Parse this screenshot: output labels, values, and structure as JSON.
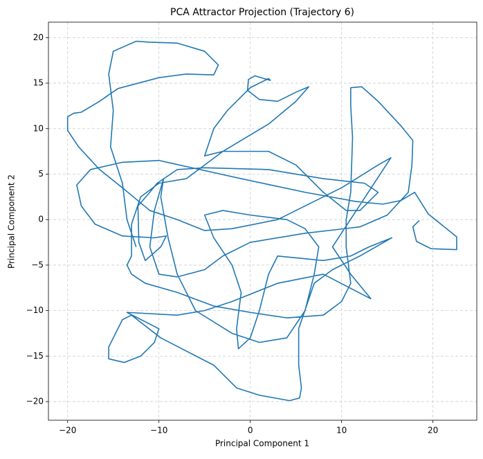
{
  "chart_data": {
    "type": "line",
    "title": "PCA Attractor Projection (Trajectory 6)",
    "x_label": "Principal Component 1",
    "y_label": "Principal Component 2",
    "grid": true,
    "xlim": [
      -22.1,
      24.8
    ],
    "ylim": [
      -22.05,
      21.7
    ],
    "xticks": [
      {
        "value": -20,
        "label": "−20"
      },
      {
        "value": -10,
        "label": "−10"
      },
      0,
      10,
      20
    ],
    "yticks": [
      {
        "value": -20,
        "label": "−20"
      },
      {
        "value": -15,
        "label": "−15"
      },
      {
        "value": -10,
        "label": "−10"
      },
      {
        "value": -5,
        "label": "−5"
      },
      0,
      5,
      10,
      15,
      20
    ],
    "series": [
      {
        "color": "#1f77b4",
        "x": [
          18.5,
          17.8,
          18.2,
          19.8,
          22.6,
          22.6,
          21,
          19.5,
          18,
          16.5,
          14.5,
          11.5,
          6,
          -1,
          -10,
          -14,
          -17.5,
          -19,
          -18.5,
          -17,
          -14,
          -10.5,
          -9.2,
          -9.8,
          -11.5,
          -12.2,
          -12.3,
          -11,
          -10.2,
          -8,
          -5,
          2,
          8,
          12.5,
          14,
          12,
          10.5,
          8,
          5,
          2,
          -3,
          -5,
          -4,
          -2.5,
          0,
          2,
          2.2,
          0.5,
          -0.2,
          -0.3,
          1,
          3,
          5,
          6.4,
          5,
          2,
          -3,
          -5,
          -7,
          -10,
          -12,
          -13,
          -13,
          -13.5,
          -13,
          -11.5,
          -8,
          -4,
          0,
          4,
          8,
          10,
          11,
          10.5,
          10.5,
          11,
          11.2,
          11,
          11,
          12.2,
          14,
          16.5,
          17.8,
          17.7,
          17.3,
          15,
          12,
          6,
          0,
          -3,
          -5,
          -8,
          -10,
          -11,
          -10.5,
          -9.5,
          -9.8,
          -9,
          -8,
          -6,
          -2,
          1,
          4,
          6,
          7,
          7.5,
          6,
          4,
          0,
          -3,
          -5,
          -4,
          -2,
          -1,
          -1.5,
          -1.3,
          0,
          1,
          2,
          3,
          5,
          8,
          11,
          13,
          15.5,
          12,
          9,
          7,
          5.3,
          5.3,
          5.6,
          5.4,
          4.3,
          1,
          -1.5,
          -4,
          -9.8,
          -13,
          -14,
          -15.5,
          -15.5,
          -13.8,
          -12,
          -10.5,
          -10,
          -13.5,
          -8,
          -5,
          -2,
          3,
          8,
          13.2,
          11,
          9,
          15.4,
          14,
          10,
          3,
          -2,
          -5,
          -8,
          -11,
          -14,
          -16.5,
          -18.8,
          -20,
          -20,
          -19.3,
          -18.5,
          -16.5,
          -14.5,
          -10,
          -7,
          -4,
          -3.5,
          -5,
          -8,
          -11,
          -12.5,
          -15,
          -15.5,
          -15,
          -15.3,
          -14,
          -13.5,
          -12.5
        ],
        "values": [
          -0.1,
          -0.8,
          -2.4,
          -3.2,
          -3.3,
          -1.9,
          -0.6,
          0.6,
          3,
          2.1,
          1.7,
          2,
          3,
          4.5,
          6.5,
          6.3,
          5.5,
          3.8,
          1.5,
          -0.5,
          -1.8,
          -2,
          -1.8,
          -3,
          -4.5,
          -2.5,
          1.5,
          3,
          4,
          5.5,
          5.7,
          5.5,
          4.5,
          4,
          3,
          1,
          1,
          3,
          6,
          7.5,
          7.5,
          7,
          10,
          12,
          14.5,
          15.5,
          15.3,
          15.8,
          15.4,
          14.2,
          13.2,
          13,
          14,
          14.6,
          13,
          10.5,
          7.5,
          6,
          4.5,
          4,
          2.5,
          -0.5,
          -4,
          -5,
          -6,
          -7,
          -8,
          -9.5,
          -10.2,
          -10.8,
          -10.5,
          -9,
          -7,
          -3,
          0,
          3,
          9,
          12.5,
          14.5,
          14.6,
          13,
          10.3,
          8.7,
          6,
          3,
          0.5,
          -0.8,
          -1.5,
          -2.5,
          -4,
          -5.5,
          -6.3,
          -6,
          -3,
          1,
          4.5,
          2.5,
          -2,
          -6,
          -10,
          -12.5,
          -13.5,
          -13,
          -10,
          -6,
          -3,
          -1,
          0,
          0.5,
          1,
          0.5,
          -2,
          -5,
          -8,
          -12,
          -14.2,
          -13,
          -10,
          -6,
          -4,
          -4.2,
          -4.5,
          -4,
          -3,
          -2,
          -4,
          -5.5,
          -7,
          -12,
          -16,
          -18.5,
          -19.6,
          -19.9,
          -19.3,
          -18.5,
          -16,
          -13,
          -10.5,
          -11,
          -14,
          -15.3,
          -15.7,
          -15,
          -13.5,
          -12,
          -10.2,
          -10.5,
          -10,
          -9,
          -7,
          -6,
          -8.7,
          -6,
          -3,
          6.8,
          6,
          3.5,
          0,
          -1,
          -1.2,
          0,
          1,
          3.5,
          5.5,
          8,
          9.8,
          11.3,
          11.7,
          11.8,
          13,
          14.4,
          15.6,
          16,
          15.9,
          17,
          18.5,
          19.4,
          19.5,
          19.6,
          18.5,
          16,
          12,
          8,
          4,
          0,
          -3
        ]
      }
    ]
  }
}
